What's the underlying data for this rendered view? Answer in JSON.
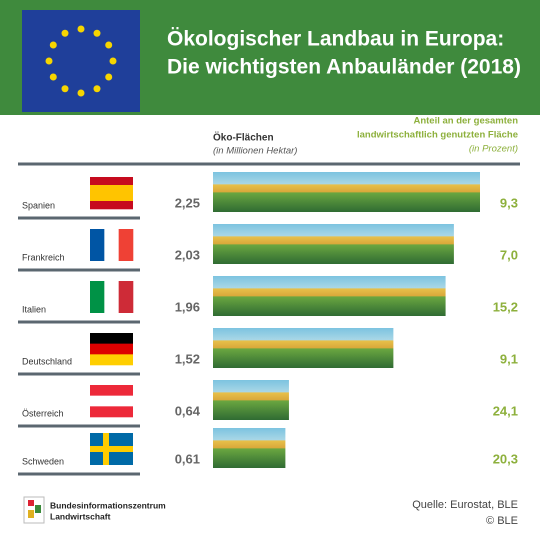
{
  "chart_data": {
    "type": "bar",
    "title": [
      "Ökologischer Landbau in Europa:",
      "Die wichtigsten Anbauländer (2018)"
    ],
    "categories": [
      "Spanien",
      "Frankreich",
      "Italien",
      "Deutschland",
      "Österreich",
      "Schweden"
    ],
    "series": [
      {
        "name": "Öko-Flächen",
        "unit": "(in Millionen Hektar)",
        "color": "#5a9a3c",
        "values": [
          2.25,
          2.03,
          1.96,
          1.52,
          0.64,
          0.61
        ],
        "value_labels": [
          "2,25",
          "2,03",
          "1,96",
          "1,52",
          "0,64",
          "0,61"
        ]
      },
      {
        "name": [
          "Anteil an der gesamten",
          "landwirtschaftlich genutzten Fläche"
        ],
        "unit": "(in Prozent)",
        "color": "#8db03c",
        "values": [
          9.3,
          7.0,
          15.2,
          9.1,
          24.1,
          20.3
        ],
        "value_labels": [
          "9,3",
          "7,0",
          "15,2",
          "9,1",
          "24,1",
          "20,3"
        ]
      }
    ],
    "logo": [
      "Bundesinformationszentrum",
      "Landwirtschaft"
    ],
    "source": "Quelle: Eurostat, BLE",
    "copyright": "© BLE"
  }
}
